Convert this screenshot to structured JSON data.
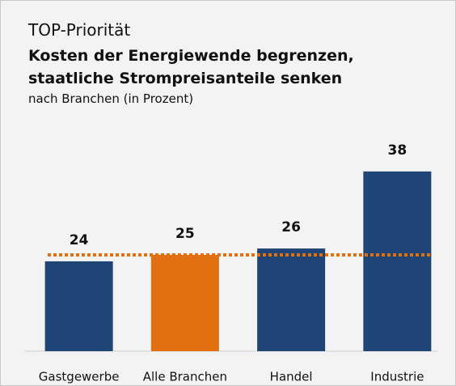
{
  "chart_data": {
    "type": "bar",
    "kicker": "TOP-Priorität",
    "title": "Kosten der Energiewende begrenzen, staatliche Strompreisanteile senken",
    "subtitle": "nach Branchen (in Prozent)",
    "categories": [
      "Gastgewerbe",
      "Alle Branchen",
      "Handel",
      "Industrie"
    ],
    "values": [
      24,
      25,
      26,
      38
    ],
    "colors": [
      "#1f4576",
      "#e2700e",
      "#1f4576",
      "#1f4576"
    ],
    "ylim": [
      10,
      40
    ],
    "reference_line": {
      "value": 25,
      "color": "#e2700e",
      "style": "dotted"
    }
  }
}
